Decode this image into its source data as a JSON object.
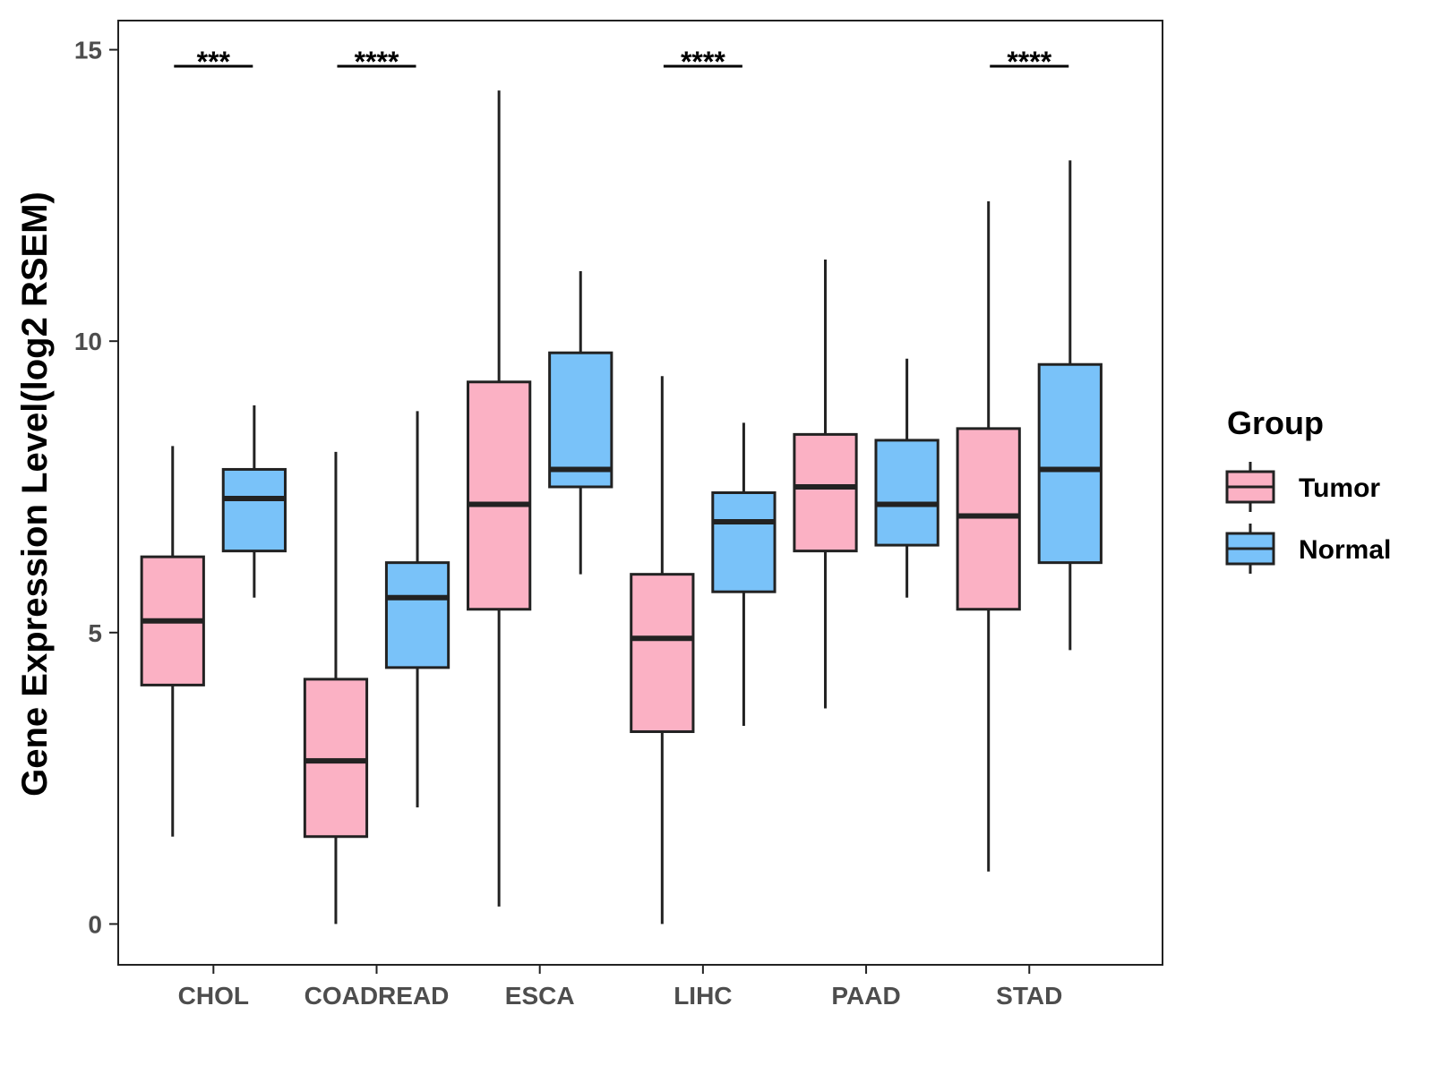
{
  "chart_data": {
    "type": "boxplot",
    "title": "",
    "xlabel": "",
    "ylabel": "Gene Expression Level(log2 RSEM)",
    "ylim": [
      -0.7,
      15.5
    ],
    "yticks": [
      0,
      5,
      10,
      15
    ],
    "categories": [
      "CHOL",
      "COADREAD",
      "ESCA",
      "LIHC",
      "PAAD",
      "STAD"
    ],
    "legend": {
      "title": "Group",
      "position": "right",
      "entries": [
        {
          "name": "Tumor",
          "color": "#FBB1C4"
        },
        {
          "name": "Normal",
          "color": "#79C2F9"
        }
      ]
    },
    "series": [
      {
        "name": "Tumor",
        "color": "#FBB1C4",
        "boxes": [
          {
            "min": 1.5,
            "q1": 4.1,
            "median": 5.2,
            "q3": 6.3,
            "max": 8.2
          },
          {
            "min": 0.0,
            "q1": 1.5,
            "median": 2.8,
            "q3": 4.2,
            "max": 8.1
          },
          {
            "min": 0.3,
            "q1": 5.4,
            "median": 7.2,
            "q3": 9.3,
            "max": 14.3
          },
          {
            "min": 0.0,
            "q1": 3.3,
            "median": 4.9,
            "q3": 6.0,
            "max": 9.4
          },
          {
            "min": 3.7,
            "q1": 6.4,
            "median": 7.5,
            "q3": 8.4,
            "max": 11.4
          },
          {
            "min": 0.9,
            "q1": 5.4,
            "median": 7.0,
            "q3": 8.5,
            "max": 12.4
          }
        ]
      },
      {
        "name": "Normal",
        "color": "#79C2F9",
        "boxes": [
          {
            "min": 5.6,
            "q1": 6.4,
            "median": 7.3,
            "q3": 7.8,
            "max": 8.9
          },
          {
            "min": 2.0,
            "q1": 4.4,
            "median": 5.6,
            "q3": 6.2,
            "max": 8.8
          },
          {
            "min": 6.0,
            "q1": 7.5,
            "median": 7.8,
            "q3": 9.8,
            "max": 11.2
          },
          {
            "min": 3.4,
            "q1": 5.7,
            "median": 6.9,
            "q3": 7.4,
            "max": 8.6
          },
          {
            "min": 5.6,
            "q1": 6.5,
            "median": 7.2,
            "q3": 8.3,
            "max": 9.7
          },
          {
            "min": 4.7,
            "q1": 6.2,
            "median": 7.8,
            "q3": 9.6,
            "max": 13.1
          }
        ]
      }
    ],
    "significance": [
      {
        "category": "CHOL",
        "label": "***"
      },
      {
        "category": "COADREAD",
        "label": "****"
      },
      {
        "category": "ESCA",
        "label": ""
      },
      {
        "category": "LIHC",
        "label": "****"
      },
      {
        "category": "PAAD",
        "label": ""
      },
      {
        "category": "STAD",
        "label": "****"
      }
    ]
  }
}
